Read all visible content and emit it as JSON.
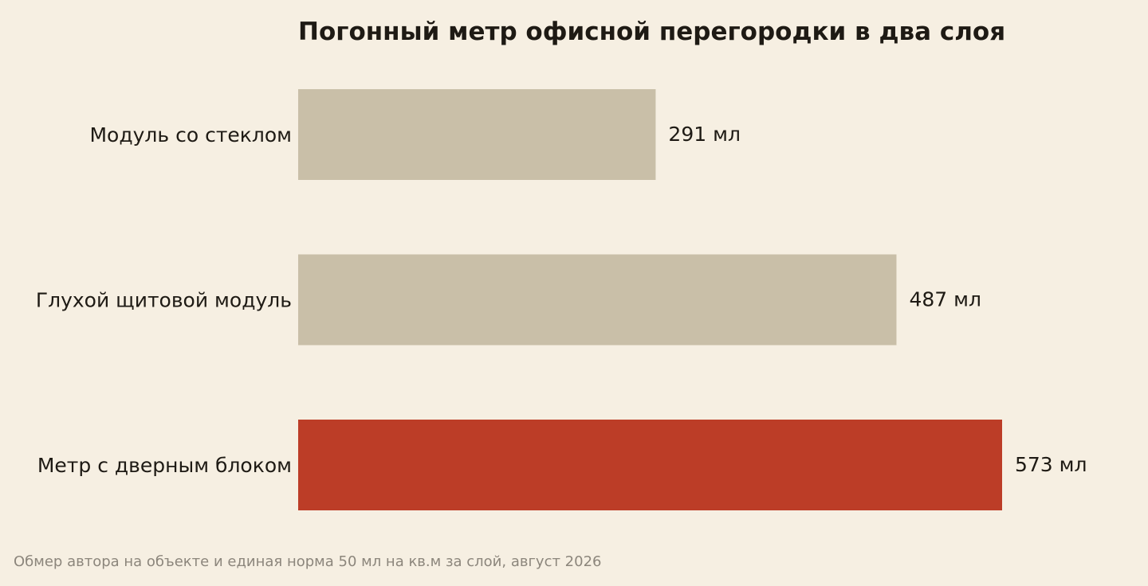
{
  "chart_data": {
    "type": "bar",
    "orientation": "horizontal",
    "title": "Погонный метр офисной перегородки в два слоя",
    "categories": [
      "Модуль со стеклом",
      "Глухой щитовой модуль",
      "Метр с дверным блоком"
    ],
    "values": [
      291,
      487,
      573
    ],
    "value_labels": [
      "291 мл",
      "487 мл",
      "573 мл"
    ],
    "unit": "мл",
    "xlim": [
      0,
      573
    ],
    "grid": false,
    "legend": "none",
    "colors": {
      "default_bar": "#c9bfa8",
      "highlight_bar": "#bc3d27",
      "text": "#1e1a14",
      "source_text": "#8c867c",
      "background": "#f6efe2"
    },
    "highlight_index": 2
  },
  "source_note": "Обмер автора на объекте и единая норма 50 мл на кв.м за слой, август 2026"
}
